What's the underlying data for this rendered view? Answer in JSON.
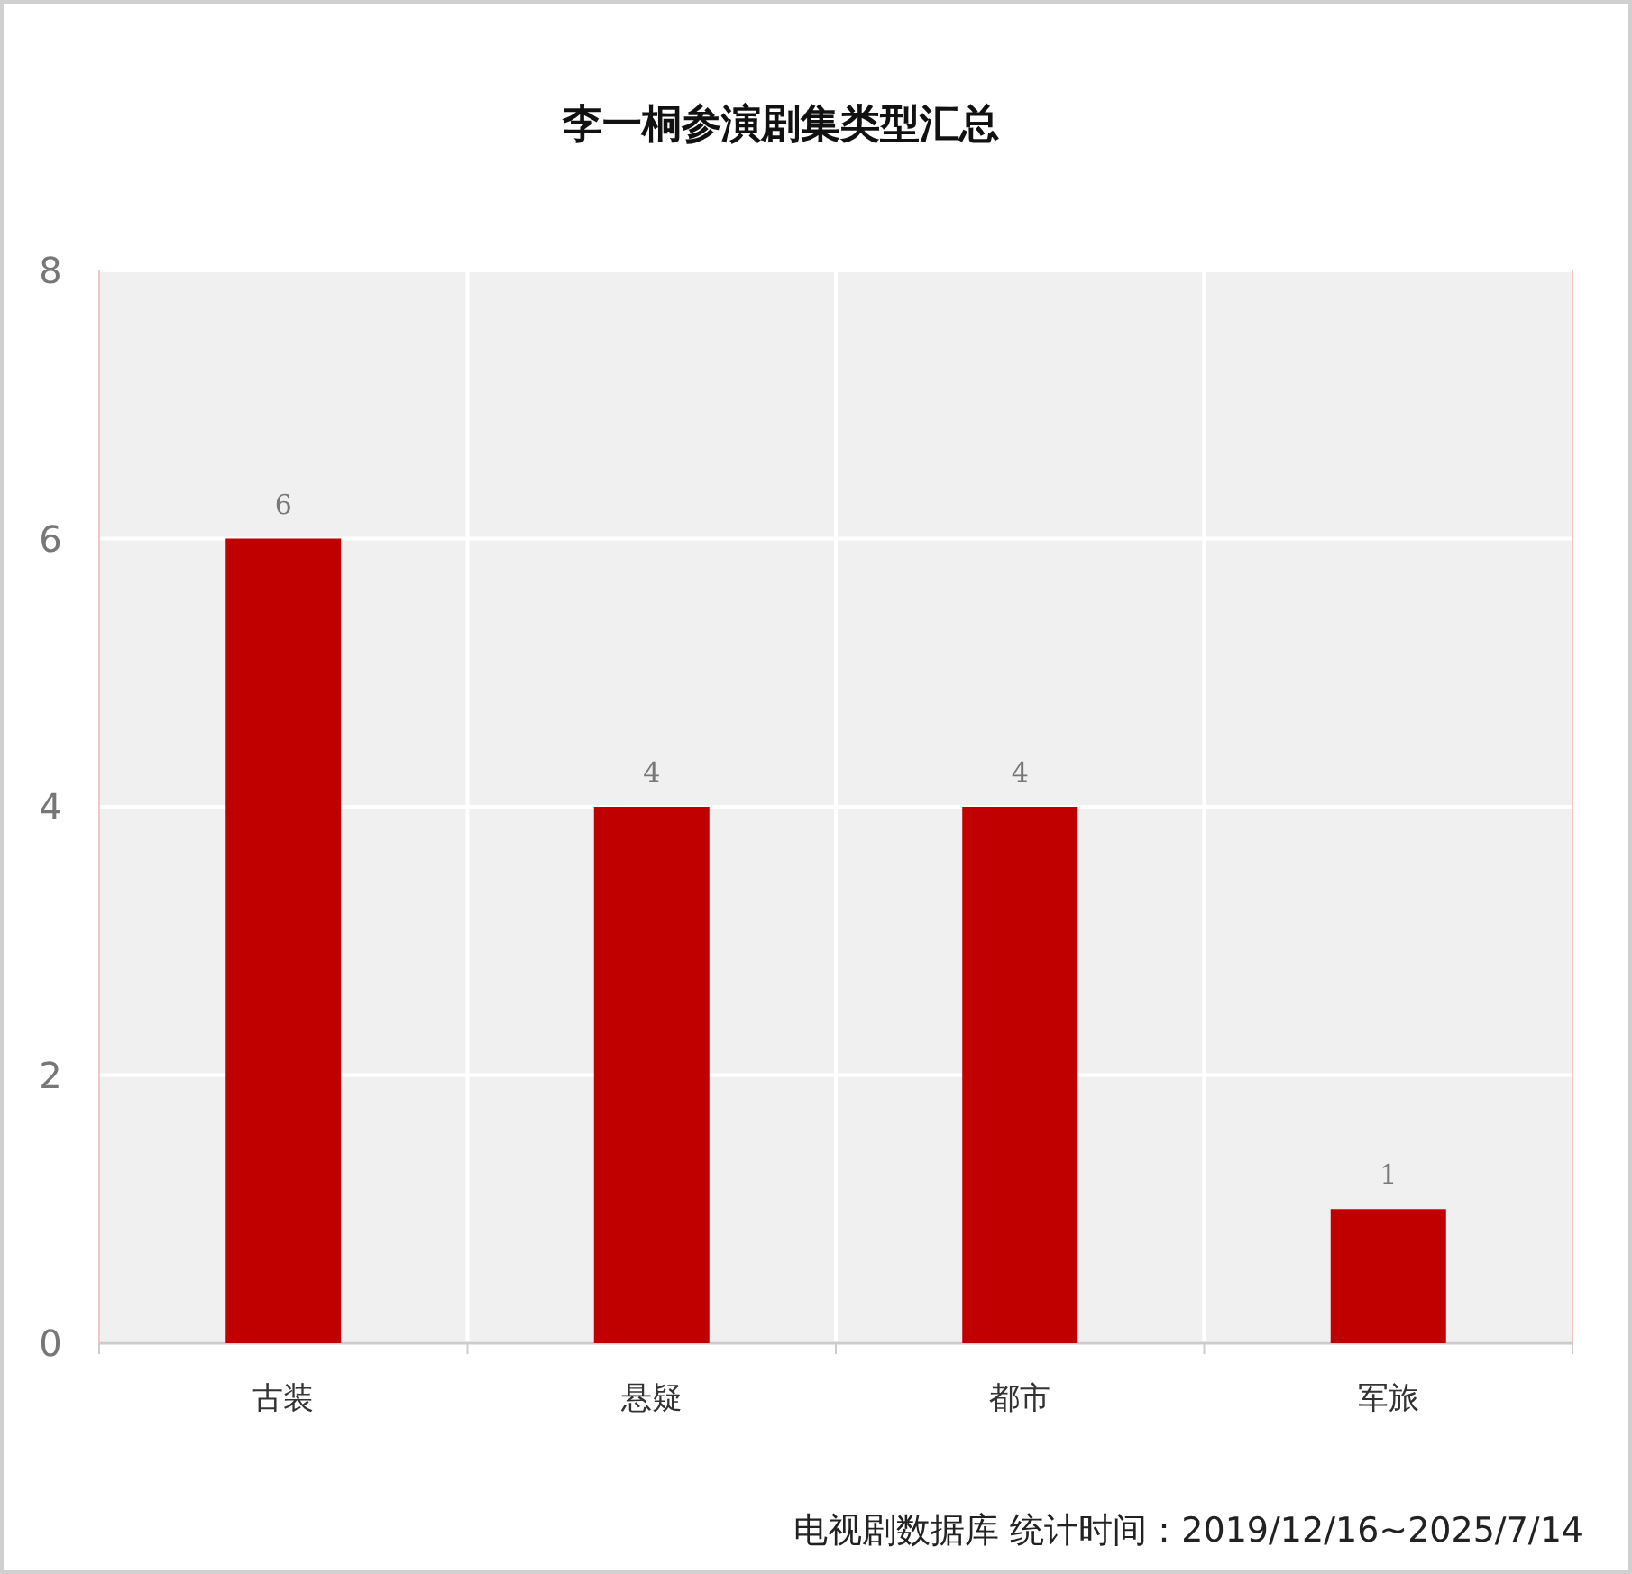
{
  "chart_data": {
    "type": "bar",
    "title": "李一桐参演剧集类型汇总",
    "categories": [
      "古装",
      "悬疑",
      "都市",
      "军旅"
    ],
    "values": [
      6,
      4,
      4,
      1
    ],
    "color": "#c00000",
    "ylim": [
      0,
      8
    ],
    "yticks": [
      0,
      2,
      4,
      6,
      8
    ],
    "grid": true,
    "data_labels": true,
    "annotations": [
      "电视剧数据库 统计时间：2019/12/16~2025/7/14"
    ]
  }
}
